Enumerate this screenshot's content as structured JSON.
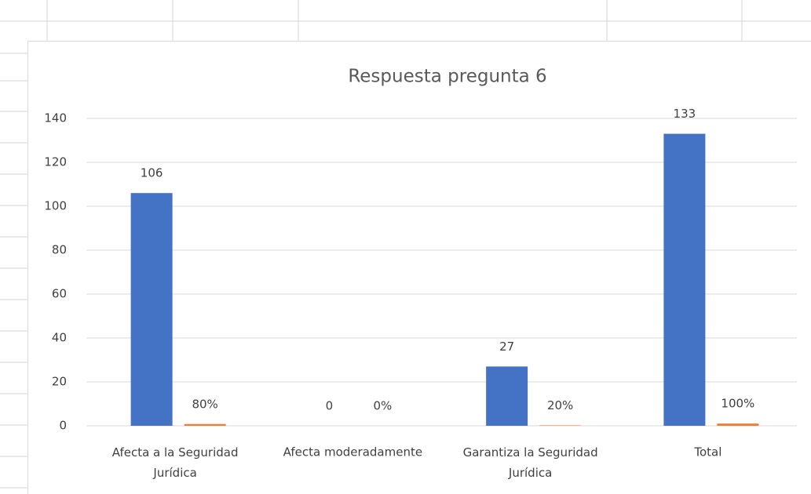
{
  "chart_data": {
    "type": "bar",
    "title": "Respuesta pregunta 6",
    "categories": [
      "Afecta a la Seguridad Jurídica",
      "Afecta moderadamente",
      "Garantiza la Seguridad Jurídica",
      "Total"
    ],
    "series": [
      {
        "color": "#4472c4",
        "values": [
          106,
          0,
          27,
          133
        ]
      },
      {
        "color": "#ed7d31",
        "values": [
          0.8,
          0,
          0.2,
          1
        ],
        "value_labels": [
          "80%",
          "0%",
          "20%",
          "100%"
        ]
      }
    ],
    "ylim": [
      0,
      140
    ],
    "yticks": [
      0,
      20,
      40,
      60,
      80,
      100,
      120,
      140
    ],
    "grid": true
  }
}
